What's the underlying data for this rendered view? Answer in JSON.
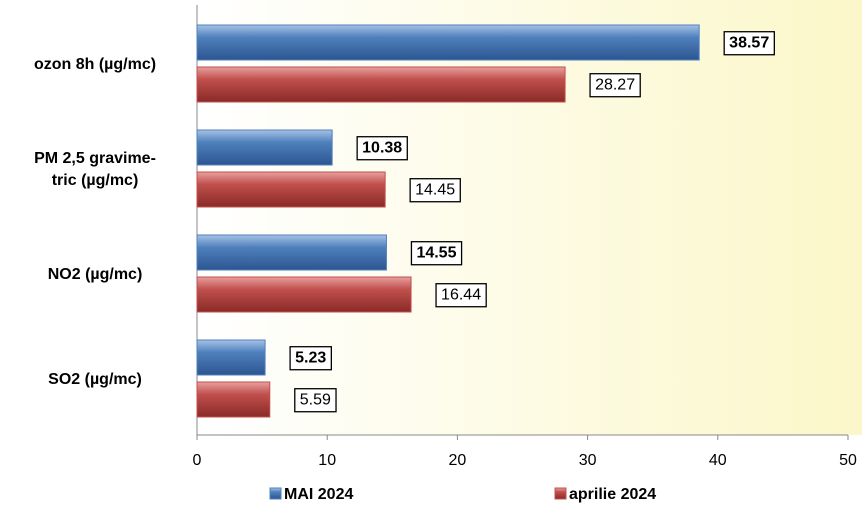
{
  "chart_data": {
    "type": "bar",
    "orientation": "horizontal",
    "categories": [
      "ozon 8h (µg/mc)",
      "PM 2,5 gravime-\ntric (µg/mc)",
      "NO2 (µg/mc)",
      "SO2 (µg/mc)"
    ],
    "series": [
      {
        "name": "MAI 2024",
        "color": "#4f81bd",
        "values": [
          38.57,
          10.38,
          14.55,
          5.23
        ]
      },
      {
        "name": "aprilie 2024",
        "color": "#c0504d",
        "values": [
          28.27,
          14.45,
          16.44,
          5.59
        ]
      }
    ],
    "xlim": [
      0,
      50
    ],
    "xticks": [
      0,
      10,
      20,
      30,
      40,
      50
    ],
    "legend": "bottom"
  }
}
